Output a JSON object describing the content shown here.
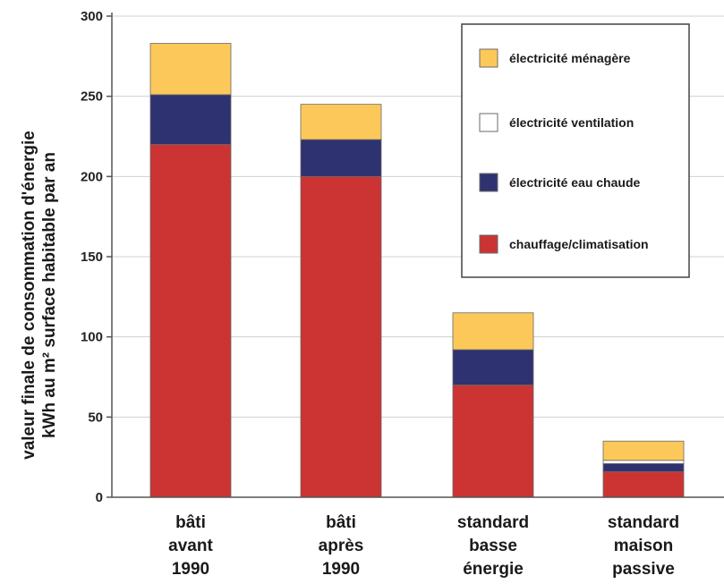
{
  "chart_data": {
    "type": "bar",
    "stacked": true,
    "ylabel_lines": [
      "valeur finale de consommation d'énergie",
      "kWh au m² surface habitable par an"
    ],
    "ylim": [
      0,
      300
    ],
    "yticks": [
      "0",
      "50",
      "100",
      "150",
      "200",
      "250",
      "300"
    ],
    "grid": true,
    "legend_position": "top-right",
    "categories": [
      [
        "bâti",
        "avant",
        "1990"
      ],
      [
        "bâti",
        "après",
        "1990"
      ],
      [
        "standard",
        "basse",
        "énergie"
      ],
      [
        "standard",
        "maison",
        "passive"
      ]
    ],
    "series": [
      {
        "name": "chauffage/climatisation",
        "color": "#cc3333",
        "values": [
          220,
          200,
          70,
          16
        ]
      },
      {
        "name": "électricité eau chaude",
        "color": "#2e3270",
        "values": [
          31,
          23,
          22,
          5
        ]
      },
      {
        "name": "électricité ventilation",
        "color": "#ffffff",
        "values": [
          0,
          0,
          0,
          2
        ]
      },
      {
        "name": "électricité ménagère",
        "color": "#fcc85a",
        "values": [
          32,
          22,
          23,
          12
        ]
      }
    ],
    "legend_order": [
      "électricité ménagère",
      "électricité ventilation",
      "électricité eau chaude",
      "chauffage/climatisation"
    ]
  }
}
